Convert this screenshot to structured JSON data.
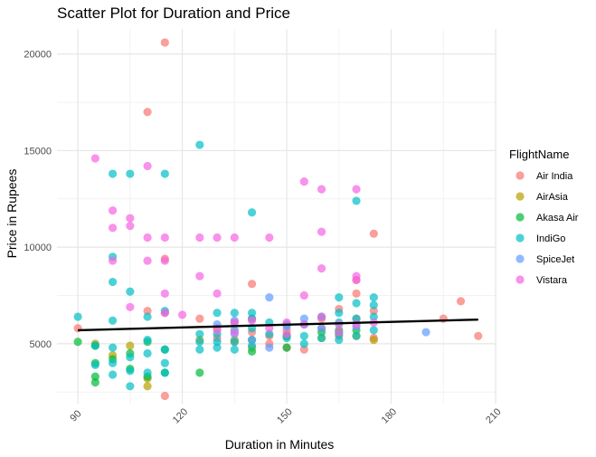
{
  "chart_data": {
    "type": "scatter",
    "title": "Scatter Plot for Duration and Price",
    "xlabel": "Duration in Minutes",
    "ylabel": "Price in Rupees",
    "xlim": [
      84,
      210
    ],
    "ylim": [
      1900,
      21300
    ],
    "x_ticks": [
      90,
      120,
      150,
      180,
      210
    ],
    "y_ticks": [
      5000,
      10000,
      15000,
      20000
    ],
    "x_tick_labels": [
      "90",
      "120",
      "150",
      "180",
      "210"
    ],
    "y_tick_labels": [
      "5000",
      "10000",
      "15000",
      "20000"
    ],
    "grid": true,
    "legend_title": "FlightName",
    "legend_position": "right",
    "trend_line": {
      "x": [
        90,
        205
      ],
      "y": [
        5700,
        6250
      ]
    },
    "series": [
      {
        "name": "Air India",
        "color": "#F8766D",
        "points": [
          [
            90,
            5800
          ],
          [
            110,
            17000
          ],
          [
            115,
            20600
          ],
          [
            115,
            2300
          ],
          [
            115,
            6600
          ],
          [
            115,
            9400
          ],
          [
            125,
            6300
          ],
          [
            130,
            5800
          ],
          [
            135,
            5100
          ],
          [
            140,
            8100
          ],
          [
            140,
            5600
          ],
          [
            145,
            5400
          ],
          [
            145,
            5000
          ],
          [
            150,
            5400
          ],
          [
            150,
            4800
          ],
          [
            155,
            4700
          ],
          [
            160,
            5800
          ],
          [
            165,
            6800
          ],
          [
            165,
            5400
          ],
          [
            170,
            7600
          ],
          [
            170,
            6300
          ],
          [
            170,
            8300
          ],
          [
            175,
            10700
          ],
          [
            175,
            6700
          ],
          [
            175,
            5300
          ],
          [
            195,
            6300
          ],
          [
            200,
            7200
          ],
          [
            205,
            5400
          ],
          [
            110,
            6700
          ],
          [
            130,
            5300
          ],
          [
            135,
            6100
          ],
          [
            140,
            6300
          ],
          [
            150,
            5700
          ],
          [
            160,
            6300
          ]
        ]
      },
      {
        "name": "AirAsia",
        "color": "#B79F00",
        "points": [
          [
            105,
            4900
          ],
          [
            110,
            2800
          ],
          [
            110,
            3200
          ],
          [
            95,
            5000
          ],
          [
            125,
            5200
          ],
          [
            135,
            5200
          ],
          [
            140,
            4800
          ],
          [
            160,
            5300
          ],
          [
            165,
            5600
          ],
          [
            170,
            5400
          ],
          [
            175,
            5200
          ],
          [
            100,
            4400
          ]
        ]
      },
      {
        "name": "Akasa Air",
        "color": "#00BA38",
        "points": [
          [
            90,
            5100
          ],
          [
            95,
            3000
          ],
          [
            95,
            3300
          ],
          [
            95,
            4000
          ],
          [
            95,
            4900
          ],
          [
            100,
            4200
          ],
          [
            105,
            3700
          ],
          [
            105,
            4500
          ],
          [
            110,
            3300
          ],
          [
            110,
            5100
          ],
          [
            115,
            3500
          ],
          [
            115,
            4700
          ],
          [
            125,
            3500
          ],
          [
            140,
            4600
          ],
          [
            140,
            5200
          ],
          [
            150,
            4800
          ],
          [
            150,
            5400
          ],
          [
            160,
            5600
          ],
          [
            165,
            5700
          ],
          [
            170,
            5700
          ]
        ]
      },
      {
        "name": "IndiGo",
        "color": "#00BFC4",
        "points": [
          [
            90,
            6400
          ],
          [
            95,
            3900
          ],
          [
            95,
            4900
          ],
          [
            100,
            13800
          ],
          [
            100,
            9500
          ],
          [
            100,
            8200
          ],
          [
            100,
            6200
          ],
          [
            100,
            4800
          ],
          [
            100,
            4000
          ],
          [
            100,
            3400
          ],
          [
            105,
            13800
          ],
          [
            105,
            7700
          ],
          [
            105,
            2800
          ],
          [
            105,
            3600
          ],
          [
            105,
            4300
          ],
          [
            110,
            4500
          ],
          [
            110,
            5200
          ],
          [
            110,
            6400
          ],
          [
            110,
            3500
          ],
          [
            115,
            13800
          ],
          [
            115,
            6700
          ],
          [
            115,
            4700
          ],
          [
            115,
            4000
          ],
          [
            115,
            3500
          ],
          [
            125,
            15300
          ],
          [
            125,
            4700
          ],
          [
            125,
            5100
          ],
          [
            125,
            5500
          ],
          [
            130,
            6600
          ],
          [
            130,
            5500
          ],
          [
            130,
            4800
          ],
          [
            130,
            5100
          ],
          [
            135,
            4700
          ],
          [
            135,
            5100
          ],
          [
            135,
            5700
          ],
          [
            135,
            6600
          ],
          [
            140,
            11800
          ],
          [
            140,
            6600
          ],
          [
            140,
            6300
          ],
          [
            140,
            5800
          ],
          [
            140,
            4900
          ],
          [
            145,
            5500
          ],
          [
            145,
            6100
          ],
          [
            150,
            5300
          ],
          [
            150,
            6000
          ],
          [
            155,
            5000
          ],
          [
            155,
            5400
          ],
          [
            155,
            6000
          ],
          [
            160,
            5300
          ],
          [
            160,
            6400
          ],
          [
            165,
            7400
          ],
          [
            165,
            6600
          ],
          [
            165,
            6100
          ],
          [
            165,
            5500
          ],
          [
            165,
            5200
          ],
          [
            170,
            12400
          ],
          [
            170,
            7100
          ],
          [
            170,
            6300
          ],
          [
            170,
            5400
          ],
          [
            175,
            7400
          ],
          [
            175,
            7000
          ],
          [
            175,
            5700
          ],
          [
            175,
            6400
          ]
        ]
      },
      {
        "name": "SpiceJet",
        "color": "#619CFF",
        "points": [
          [
            130,
            6000
          ],
          [
            135,
            5500
          ],
          [
            135,
            6200
          ],
          [
            140,
            5200
          ],
          [
            145,
            7400
          ],
          [
            145,
            4800
          ],
          [
            150,
            5900
          ],
          [
            155,
            6300
          ],
          [
            160,
            5800
          ],
          [
            170,
            5900
          ],
          [
            190,
            5600
          ]
        ]
      },
      {
        "name": "Vistara",
        "color": "#F564E3",
        "points": [
          [
            95,
            14600
          ],
          [
            100,
            11900
          ],
          [
            100,
            11000
          ],
          [
            100,
            9300
          ],
          [
            105,
            11500
          ],
          [
            105,
            11100
          ],
          [
            105,
            6900
          ],
          [
            110,
            14200
          ],
          [
            110,
            10500
          ],
          [
            110,
            9300
          ],
          [
            115,
            10500
          ],
          [
            115,
            9300
          ],
          [
            115,
            7600
          ],
          [
            115,
            6600
          ],
          [
            125,
            10500
          ],
          [
            125,
            8500
          ],
          [
            130,
            10500
          ],
          [
            130,
            7600
          ],
          [
            130,
            5700
          ],
          [
            135,
            10500
          ],
          [
            135,
            6100
          ],
          [
            135,
            5600
          ],
          [
            140,
            6200
          ],
          [
            145,
            10500
          ],
          [
            145,
            5800
          ],
          [
            150,
            6100
          ],
          [
            155,
            13400
          ],
          [
            155,
            7500
          ],
          [
            155,
            6000
          ],
          [
            160,
            13000
          ],
          [
            160,
            10800
          ],
          [
            160,
            8900
          ],
          [
            160,
            6400
          ],
          [
            165,
            5600
          ],
          [
            165,
            6000
          ],
          [
            170,
            13000
          ],
          [
            170,
            8500
          ],
          [
            170,
            8300
          ],
          [
            170,
            6000
          ],
          [
            175,
            6100
          ],
          [
            120,
            6500
          ],
          [
            150,
            5500
          ]
        ]
      }
    ]
  }
}
